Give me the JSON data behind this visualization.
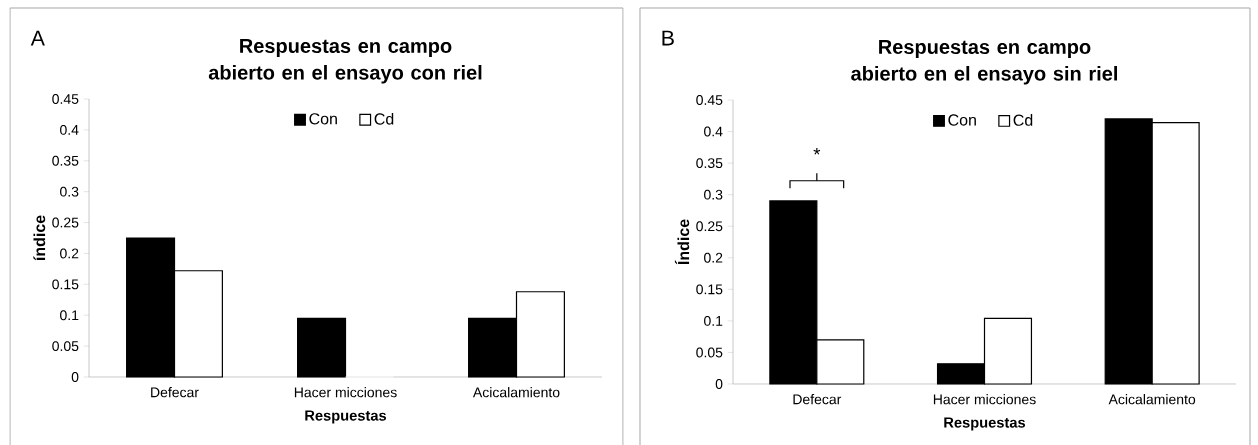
{
  "chart_data": [
    {
      "type": "bar",
      "title": "Respuestas en campo abierto en el ensayo con riel",
      "xlabel": "Respuestas",
      "ylabel": "índice",
      "categories": [
        "Defecar",
        "Hacer micciones",
        "Acicalamiento"
      ],
      "series": [
        {
          "name": "Con",
          "color": "#000000",
          "values": [
            0.225,
            0.095,
            0.095
          ]
        },
        {
          "name": "Cd",
          "color": "#ffffff",
          "values": [
            0.172,
            0,
            0.138
          ]
        }
      ],
      "ylim": [
        0,
        0.45
      ],
      "yticks": [
        0,
        0.05,
        0.1,
        0.15,
        0.2,
        0.25,
        0.3,
        0.35,
        0.4,
        0.45
      ],
      "legend": "top",
      "grid": false,
      "annotations": [
        "A"
      ]
    },
    {
      "type": "bar",
      "title": "Respuestas en campo abierto en el ensayo sin riel",
      "xlabel": "Respuestas",
      "ylabel": "Índice",
      "categories": [
        "Defecar",
        "Hacer micciones",
        "Acicalamiento"
      ],
      "series": [
        {
          "name": "Con",
          "color": "#000000",
          "values": [
            0.29,
            0.032,
            0.42
          ]
        },
        {
          "name": "Cd",
          "color": "#ffffff",
          "values": [
            0.07,
            0.104,
            0.414
          ]
        }
      ],
      "ylim": [
        0,
        0.45
      ],
      "yticks": [
        0,
        0.05,
        0.1,
        0.15,
        0.2,
        0.25,
        0.3,
        0.35,
        0.4,
        0.45
      ],
      "legend": "top",
      "grid": false,
      "annotations": [
        "B",
        "*"
      ]
    }
  ]
}
